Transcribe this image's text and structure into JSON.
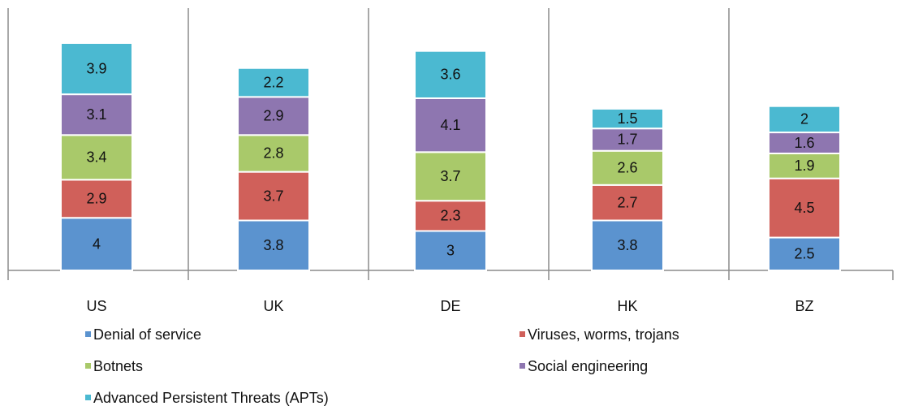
{
  "chart_data": {
    "type": "stacked_bar",
    "categories": [
      "US",
      "UK",
      "DE",
      "HK",
      "BZ"
    ],
    "series": [
      {
        "name": "Denial of service",
        "color": "#5b93cf",
        "values": [
          4,
          3.8,
          3,
          3.8,
          2.5
        ]
      },
      {
        "name": "Viruses, worms, trojans",
        "color": "#d0605a",
        "values": [
          2.9,
          3.7,
          2.3,
          2.7,
          4.5
        ]
      },
      {
        "name": "Botnets",
        "color": "#a9c96a",
        "values": [
          3.4,
          2.8,
          3.7,
          2.6,
          1.9
        ]
      },
      {
        "name": "Social engineering",
        "color": "#8e76b0",
        "values": [
          3.1,
          2.9,
          4.1,
          1.7,
          1.6
        ]
      },
      {
        "name": "Advanced Persistent Threats (APTs)",
        "color": "#4bb9d1",
        "values": [
          3.9,
          2.2,
          3.6,
          1.5,
          2
        ]
      }
    ],
    "legend": "bottom"
  }
}
